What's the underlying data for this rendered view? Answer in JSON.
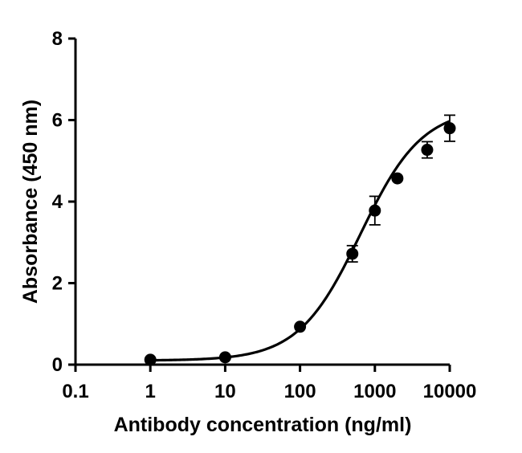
{
  "chart_data": {
    "type": "scatter",
    "xlabel": "Antibody concentration (ng/ml)",
    "ylabel": "Absorbance (450 nm)",
    "x_scale": "log",
    "xlim": [
      0.1,
      10000
    ],
    "ylim": [
      0,
      8
    ],
    "x_ticks": [
      "0.1",
      "1",
      "10",
      "100",
      "1000",
      "10000"
    ],
    "y_ticks": [
      "0",
      "2",
      "4",
      "6",
      "8"
    ],
    "grid": false,
    "legend": "none",
    "series": [
      {
        "x": [
          1,
          10,
          100,
          500,
          1000,
          2000,
          5000,
          10000
        ],
        "y": [
          0.12,
          0.18,
          0.93,
          2.72,
          3.78,
          4.57,
          5.27,
          5.8
        ],
        "error": [
          0.03,
          0.03,
          0.05,
          0.2,
          0.35,
          0.08,
          0.2,
          0.32
        ]
      }
    ],
    "fit_curve": {
      "type": "4PL",
      "bottom": 0.1,
      "top": 6.3,
      "ec50": 640,
      "hill": 1.05
    },
    "colors": {
      "marker": "#000000",
      "line": "#000000",
      "axis": "#000000"
    }
  }
}
